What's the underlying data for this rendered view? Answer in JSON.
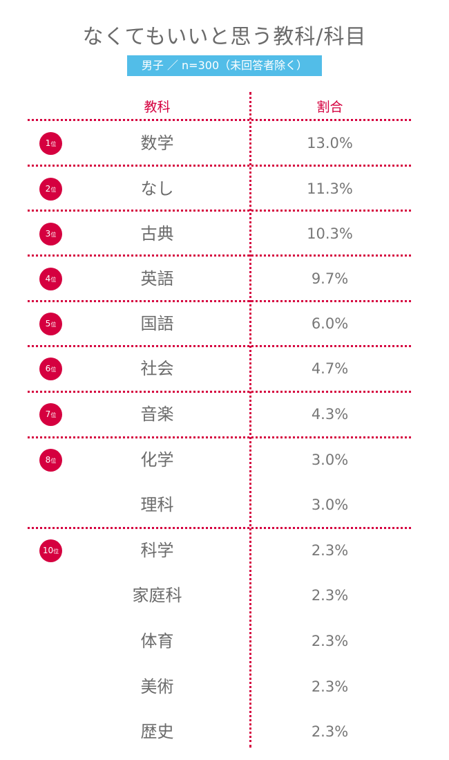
{
  "title": "なくてもいいと思う教科/科目",
  "subtitle": "男子 ／ n=300（未回答者除く）",
  "headers": {
    "subject": "教科",
    "ratio": "割合"
  },
  "rank_suffix": "位",
  "accent_color": "#d5003f",
  "subtitle_bg": "#52bde8",
  "rows": [
    {
      "rank": "1",
      "subject": "数学",
      "ratio": "13.0%"
    },
    {
      "rank": "2",
      "subject": "なし",
      "ratio": "11.3%"
    },
    {
      "rank": "3",
      "subject": "古典",
      "ratio": "10.3%"
    },
    {
      "rank": "4",
      "subject": "英語",
      "ratio": "9.7%"
    },
    {
      "rank": "5",
      "subject": "国語",
      "ratio": "6.0%"
    },
    {
      "rank": "6",
      "subject": "社会",
      "ratio": "4.7%"
    },
    {
      "rank": "7",
      "subject": "音楽",
      "ratio": "4.3%"
    },
    {
      "rank": "8",
      "subject": "化学",
      "ratio": "3.0%"
    },
    {
      "rank": "",
      "subject": "理科",
      "ratio": "3.0%"
    },
    {
      "rank": "10",
      "subject": "科学",
      "ratio": "2.3%"
    },
    {
      "rank": "",
      "subject": "家庭科",
      "ratio": "2.3%"
    },
    {
      "rank": "",
      "subject": "体育",
      "ratio": "2.3%"
    },
    {
      "rank": "",
      "subject": "美術",
      "ratio": "2.3%"
    },
    {
      "rank": "",
      "subject": "歴史",
      "ratio": "2.3%"
    }
  ]
}
